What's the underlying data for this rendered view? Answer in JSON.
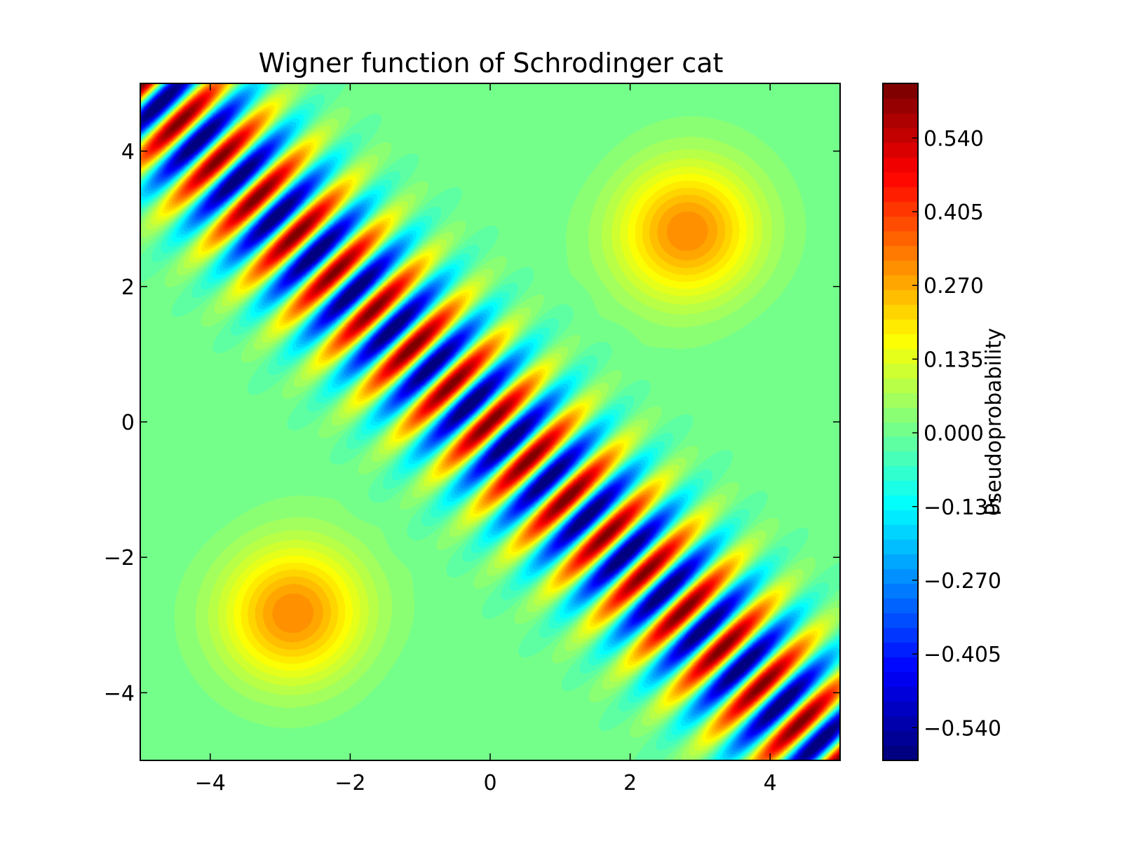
{
  "chart_data": {
    "type": "heatmap",
    "title": "Wigner function of Schrodinger cat",
    "xlabel": "",
    "ylabel": "",
    "xlim": [
      -5,
      5
    ],
    "ylim": [
      -5,
      5
    ],
    "x_ticks": [
      "−4",
      "−2",
      "0",
      "2",
      "4"
    ],
    "y_ticks": [
      "4",
      "2",
      "0",
      "−2",
      "−4"
    ],
    "grid": false,
    "colormap": "jet",
    "colorbar": {
      "label": "Pseudoprobability",
      "range": [
        -0.6,
        0.64
      ],
      "ticks": [
        "0.540",
        "0.405",
        "0.270",
        "0.135",
        "0.000",
        "−0.135",
        "−0.270",
        "−0.405",
        "−0.540"
      ]
    },
    "features": {
      "gaussian_peaks": [
        {
          "x": 2.83,
          "y": 2.83,
          "peak_value": 0.32
        },
        {
          "x": -2.83,
          "y": -2.83,
          "peak_value": 0.32
        }
      ],
      "interference": {
        "center": [
          0,
          0
        ],
        "peak_value": 0.64,
        "min_value": -0.6,
        "orientation": "diagonal (x = y)"
      }
    }
  }
}
